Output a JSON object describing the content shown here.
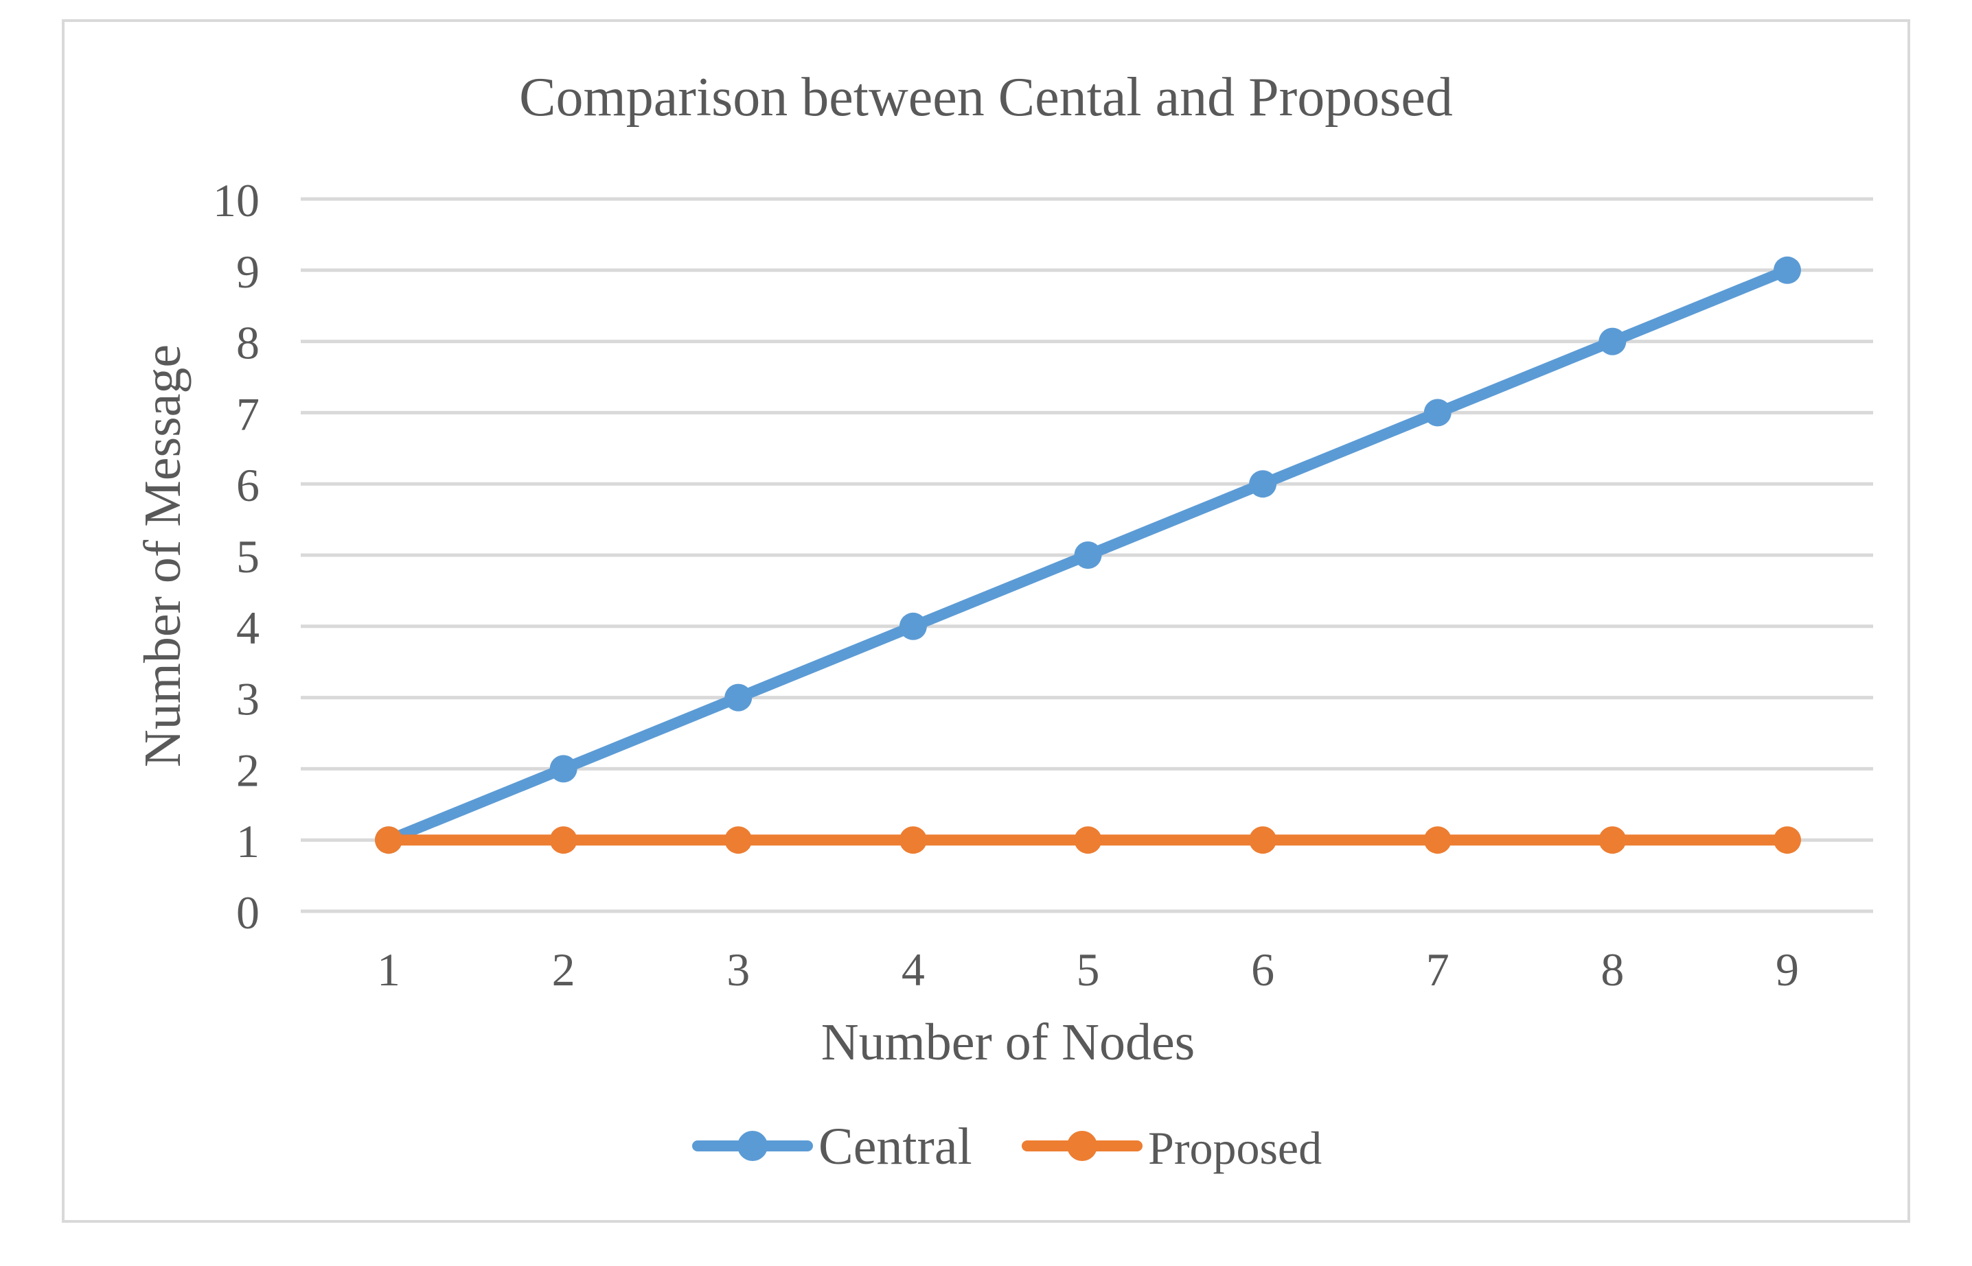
{
  "chart_data": {
    "type": "line",
    "title": "Comparison between Cental and Proposed",
    "xlabel": "Number of Nodes",
    "ylabel": "Number of Message",
    "categories": [
      "1",
      "2",
      "3",
      "4",
      "5",
      "6",
      "7",
      "8",
      "9"
    ],
    "series": [
      {
        "name": "Central",
        "values": [
          1,
          2,
          3,
          4,
          5,
          6,
          7,
          8,
          9
        ],
        "color": "#5B9BD5"
      },
      {
        "name": "Proposed",
        "values": [
          1,
          1,
          1,
          1,
          1,
          1,
          1,
          1,
          1
        ],
        "color": "#ED7D31"
      }
    ],
    "ylim": [
      0,
      10
    ],
    "yticks": [
      "0",
      "1",
      "2",
      "3",
      "4",
      "5",
      "6",
      "7",
      "8",
      "9",
      "10"
    ],
    "grid": true,
    "legend_position": "bottom",
    "colors": {
      "frame": "#D9D9D9",
      "gridline": "#D9D9D9",
      "text": "#595959"
    }
  }
}
